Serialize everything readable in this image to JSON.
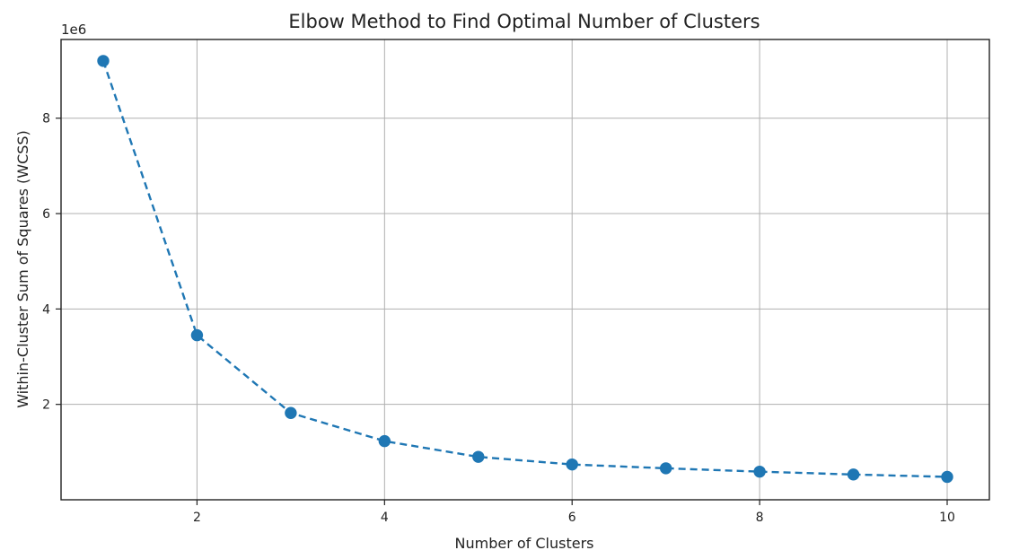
{
  "chart_data": {
    "type": "line",
    "title": "Elbow Method to Find Optimal Number of Clusters",
    "xlabel": "Number of Clusters",
    "ylabel": "Within-Cluster Sum of Squares (WCSS)",
    "y_offset_label": "1e6",
    "x": [
      1,
      2,
      3,
      4,
      5,
      6,
      7,
      8,
      9,
      10
    ],
    "series": [
      {
        "values": [
          9200000,
          3450000,
          1820000,
          1230000,
          900000,
          740000,
          660000,
          590000,
          530000,
          480000
        ],
        "color": "#1f77b4",
        "line_style": "dashed",
        "marker": "circle"
      }
    ],
    "xlim": [
      0.55,
      10.45
    ],
    "ylim": [
      0,
      9650000
    ],
    "xticks": [
      2,
      4,
      6,
      8,
      10
    ],
    "xtick_labels": [
      "2",
      "4",
      "6",
      "8",
      "10"
    ],
    "yticks": [
      2000000,
      4000000,
      6000000,
      8000000
    ],
    "ytick_labels": [
      "2",
      "4",
      "6",
      "8"
    ],
    "grid": true
  }
}
